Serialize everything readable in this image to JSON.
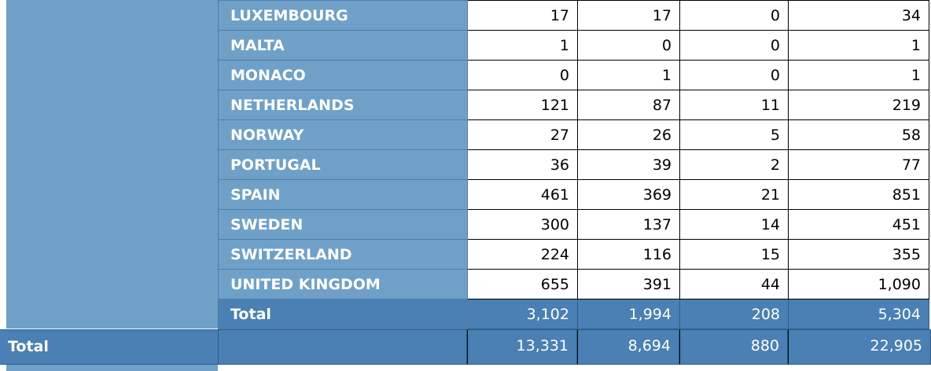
{
  "rows": [
    {
      "country": "LUXEMBOURG",
      "c1": "17",
      "c2": "17",
      "c3": "0",
      "c4": "34"
    },
    {
      "country": "MALTA",
      "c1": "1",
      "c2": "0",
      "c3": "0",
      "c4": "1"
    },
    {
      "country": "MONACO",
      "c1": "0",
      "c2": "1",
      "c3": "0",
      "c4": "1"
    },
    {
      "country": "NETHERLANDS",
      "c1": "121",
      "c2": "87",
      "c3": "11",
      "c4": "219"
    },
    {
      "country": "NORWAY",
      "c1": "27",
      "c2": "26",
      "c3": "5",
      "c4": "58"
    },
    {
      "country": "PORTUGAL",
      "c1": "36",
      "c2": "39",
      "c3": "2",
      "c4": "77"
    },
    {
      "country": "SPAIN",
      "c1": "461",
      "c2": "369",
      "c3": "21",
      "c4": "851"
    },
    {
      "country": "SWEDEN",
      "c1": "300",
      "c2": "137",
      "c3": "14",
      "c4": "451"
    },
    {
      "country": "SWITZERLAND",
      "c1": "224",
      "c2": "116",
      "c3": "15",
      "c4": "355"
    },
    {
      "country": "UNITED KINGDOM",
      "c1": "655",
      "c2": "391",
      "c3": "44",
      "c4": "1,090"
    }
  ],
  "subtotal": {
    "label": "Total",
    "c1": "3,102",
    "c2": "1,994",
    "c3": "208",
    "c4": "5,304"
  },
  "grand_total": {
    "label": "Total",
    "c1": "13,331",
    "c2": "8,694",
    "c3": "880",
    "c4": "22,905"
  }
}
